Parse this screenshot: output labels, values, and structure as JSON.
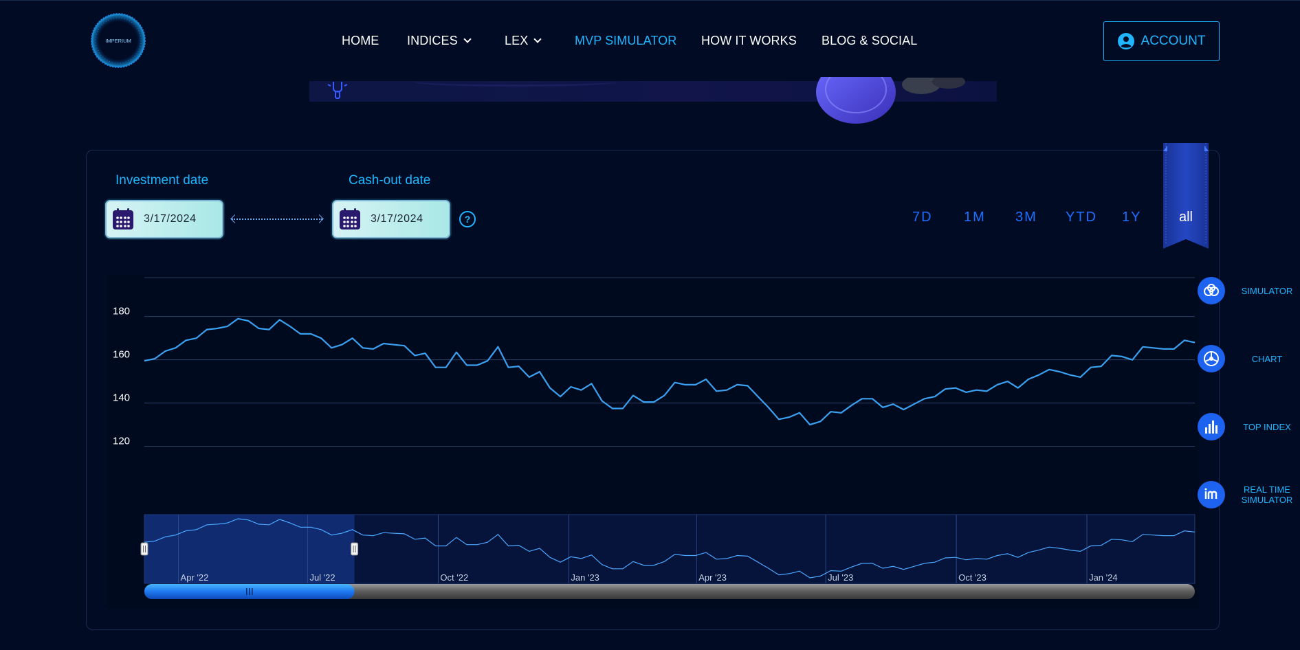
{
  "header": {
    "logo_text": "IMPERIUM",
    "nav": [
      {
        "label": "HOME",
        "dropdown": false,
        "active": false
      },
      {
        "label": "INDICES",
        "dropdown": true,
        "active": false
      },
      {
        "label": "LEX",
        "dropdown": true,
        "active": false
      },
      {
        "label": "MVP SIMULATOR",
        "dropdown": false,
        "active": true
      },
      {
        "label": "HOW IT WORKS",
        "dropdown": false,
        "active": false
      },
      {
        "label": "BLOG & SOCIAL",
        "dropdown": false,
        "active": false
      }
    ],
    "account_label": "ACCOUNT"
  },
  "simulator": {
    "investment_label": "Investment date",
    "investment_date": "3/17/2024",
    "cashout_label": "Cash-out date",
    "cashout_date": "3/17/2024",
    "help_glyph": "?",
    "ranges": [
      "7D",
      "1M",
      "3M",
      "YTD",
      "1Y",
      "all"
    ],
    "active_range": "all"
  },
  "side_nav": [
    {
      "label": "SIMULATOR",
      "icon": "coins-icon"
    },
    {
      "label": "CHART",
      "icon": "pie-chart-icon"
    },
    {
      "label": "TOP INDEX",
      "icon": "bar-chart-icon"
    },
    {
      "label": "REAL TIME SIMULATOR",
      "icon": "im-logo-icon"
    }
  ],
  "colors": {
    "background": "#010c24",
    "accent": "#1fb6ff",
    "range_button": "#1e6fff",
    "line": "#3aa0f0",
    "ribbon": "#1e3a9e",
    "navigator_selection": "#1e63f0"
  },
  "chart_data": {
    "type": "line",
    "y_ticks": [
      120,
      140,
      160,
      180
    ],
    "ylim": [
      104,
      198
    ],
    "grid": true,
    "x_start": "2022-03-08",
    "x_end": "2024-03-17",
    "series": [
      {
        "values": [
          159.5,
          160.5,
          164,
          165.5,
          169,
          170,
          174,
          174.5,
          175.5,
          179,
          178,
          174.5,
          174,
          178.5,
          175.5,
          172,
          172,
          170,
          165.5,
          167,
          170,
          165.5,
          165,
          167.5,
          167,
          166.5,
          162,
          163,
          156.5,
          156.5,
          163.5,
          157.5,
          157.5,
          159.5,
          166,
          156.5,
          157,
          152,
          154.5,
          147,
          143,
          147.5,
          146,
          149,
          141,
          137.5,
          137.5,
          143.5,
          140.5,
          140.5,
          143.5,
          149.5,
          148.5,
          148.5,
          151,
          145.5,
          146,
          148.5,
          148,
          143,
          138,
          132.5,
          133.5,
          135.5,
          130,
          131.5,
          136,
          135.5,
          139,
          142,
          142,
          138,
          139.5,
          137,
          139.5,
          142,
          143,
          146.5,
          147,
          145,
          146,
          145.5,
          148.5,
          150,
          147,
          151,
          153,
          155.5,
          154.5,
          153,
          152,
          156.5,
          157,
          162,
          161.5,
          160,
          166,
          165.5,
          165,
          165,
          169,
          168
        ]
      }
    ],
    "navigator": {
      "x_labels": [
        "Apr '22",
        "Jul '22",
        "Oct '22",
        "Jan '23",
        "Apr '23",
        "Jul '23",
        "Oct '23",
        "Jan '24"
      ],
      "selection": [
        0,
        0.2
      ]
    }
  }
}
